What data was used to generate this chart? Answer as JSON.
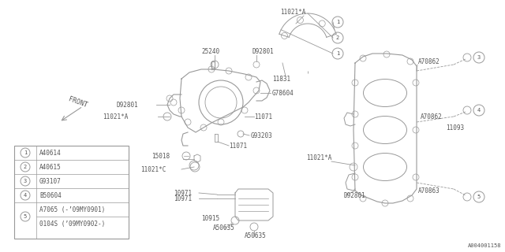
{
  "bg_color": "#ffffff",
  "line_color": "#999999",
  "text_color": "#555555",
  "diagram_id": "A004001158",
  "legend_items": [
    {
      "num": "1",
      "code": "A40614"
    },
    {
      "num": "2",
      "code": "A40615"
    },
    {
      "num": "3",
      "code": "G93107"
    },
    {
      "num": "4",
      "code": "B50604"
    },
    {
      "num": "5",
      "code": "A7065 (-’09MY0901)",
      "code2": "0104S (’09MY0902-)"
    }
  ]
}
